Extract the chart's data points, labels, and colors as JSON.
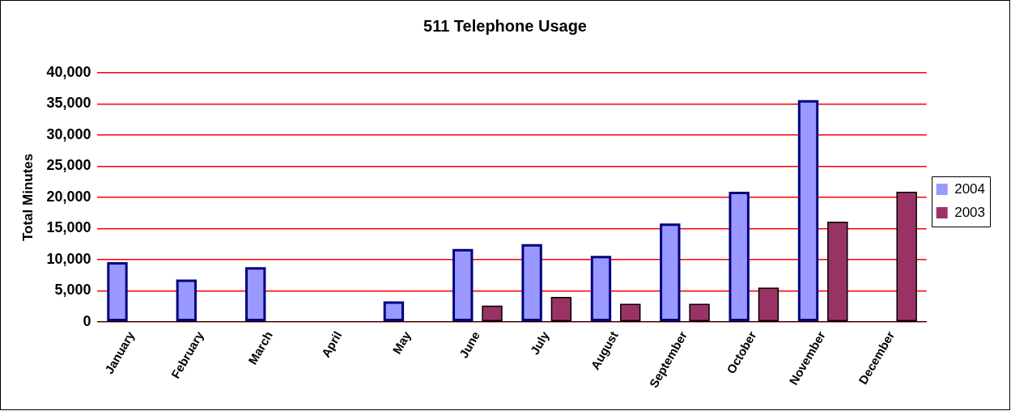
{
  "chart_data": {
    "type": "bar",
    "title": "511 Telephone Usage",
    "ylabel": "Total Minutes",
    "categories": [
      "January",
      "February",
      "March",
      "April",
      "May",
      "June",
      "July",
      "August",
      "September",
      "October",
      "November",
      "December"
    ],
    "series": [
      {
        "name": "2004",
        "color": "#9999ff",
        "values": [
          9600,
          6800,
          8800,
          null,
          3300,
          11700,
          12500,
          10600,
          15800,
          20900,
          35600,
          null
        ]
      },
      {
        "name": "2003",
        "color": "#993366",
        "values": [
          null,
          null,
          null,
          null,
          null,
          2600,
          4000,
          2900,
          2900,
          5500,
          16100,
          20900
        ]
      }
    ],
    "ylim": [
      0,
      40000
    ],
    "yticks": [
      {
        "value": 0,
        "label": "0"
      },
      {
        "value": 5000,
        "label": "5,000"
      },
      {
        "value": 10000,
        "label": "10,000"
      },
      {
        "value": 15000,
        "label": "15,000"
      },
      {
        "value": 20000,
        "label": "20,000"
      },
      {
        "value": 25000,
        "label": "25,000"
      },
      {
        "value": 30000,
        "label": "30,000"
      },
      {
        "value": 35000,
        "label": "35,000"
      },
      {
        "value": 40000,
        "label": "40,000"
      }
    ],
    "grid": "y",
    "legend": "right"
  }
}
